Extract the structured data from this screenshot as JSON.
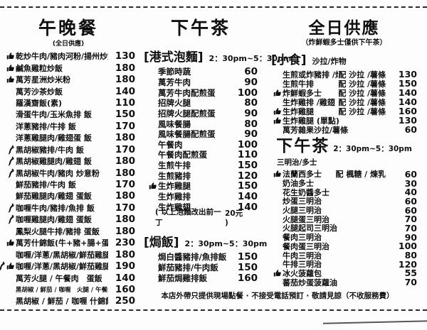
{
  "lunch_dinner": {
    "title": "午晚餐",
    "subtitle": "(全日供應)",
    "items": [
      {
        "icons": [
          "thumbs-up"
        ],
        "name": "乾炒牛肉/豬肉河粉/揚州炒飯",
        "price": "130"
      },
      {
        "icons": [
          "thumbs-up"
        ],
        "name": "鹹魚雞粒炒飯",
        "price": "180"
      },
      {
        "icons": [
          "thumbs-up"
        ],
        "name": "萬芳星洲炒米粉",
        "price": "180"
      },
      {
        "name": "萬芳沙茶炒飯",
        "price": "140"
      },
      {
        "name": "羅漢齋飯(素)",
        "price": "110"
      },
      {
        "name": "滑蛋牛肉/玉米魚排 飯",
        "price": "150"
      },
      {
        "name": "洋蔥豬排/牛排 飯",
        "price": "170"
      },
      {
        "name": "洋蔥雞腿肉/雞翅蛋 飯",
        "price": "180"
      },
      {
        "icons": [
          "chili"
        ],
        "name": "黑胡椒豬排/牛肉 飯",
        "price": "170"
      },
      {
        "icons": [
          "chili"
        ],
        "name": "黑胡椒雞腿肉/雞翅 飯",
        "price": "180"
      },
      {
        "icons": [
          "chili"
        ],
        "name": "黑胡椒牛肉/豬肉 炒意粉",
        "price": "180"
      },
      {
        "name": "鮮茄豬排/牛肉 飯",
        "price": "170"
      },
      {
        "name": "鮮茄雞腿肉/雞翅 蛋飯",
        "price": "180"
      },
      {
        "icons": [
          "chili"
        ],
        "name": "咖喱牛肉/豬排/魚排 飯",
        "price": "170"
      },
      {
        "icons": [
          "chili"
        ],
        "name": "咖喱雞腿肉/雞翅 蛋飯",
        "price": "180"
      },
      {
        "name": "鳳梨火腿牛排/豬排 蛋飯",
        "price": "180"
      },
      {
        "icons": [
          "thumbs-up"
        ],
        "name": "萬芳什錦飯(牛+豬+腸+蛋)",
        "price": "230"
      },
      {
        "name": "咖喱/洋蔥/黑胡椒/鮮茄雞腿 飯",
        "price": "180"
      },
      {
        "icons": [
          "chili",
          "thumbs-up"
        ],
        "name": "咖喱/洋蔥/黑胡椒/鮮茄雞腿 蛋飯",
        "price": "190"
      },
      {
        "name": "萬芳火腿 / 午餐肉　蛋飯",
        "price": "140"
      },
      {
        "name": "黑胡椒 / 鮮茄 / 咖喱　火腿 / 午餐肉　蛋飯",
        "price": "160",
        "small": true
      },
      {
        "name": "黑胡椒 / 鮮茄 / 咖喱 什錦飯",
        "price": "250"
      }
    ]
  },
  "afternoon_tea": {
    "title": "下午茶",
    "noodles": {
      "label": "[港式泡麵]",
      "time": "2：30pm~5：30pm",
      "items": [
        {
          "name": "季節時蔬",
          "price": "60"
        },
        {
          "name": "萬芳牛肉",
          "price": "90"
        },
        {
          "name": "萬芳牛肉配煎蛋",
          "price": "100"
        },
        {
          "name": "招牌火腿",
          "price": "80"
        },
        {
          "name": "招牌火腿配煎蛋",
          "price": "90"
        },
        {
          "name": "風味餐腸",
          "price": "80"
        },
        {
          "name": "風味餐腸配煎蛋",
          "price": "90"
        },
        {
          "name": "午餐肉",
          "price": "100"
        },
        {
          "name": "午餐肉配煎蛋",
          "price": "110"
        },
        {
          "name": "生煎牛排",
          "price": "150"
        },
        {
          "name": "生煎豬排",
          "price": "120"
        },
        {
          "icons": [
            "thumbs-up"
          ],
          "name": "生炸雞腿",
          "price": "150"
        },
        {
          "name": "生炸雞排",
          "price": "140"
        },
        {
          "name": "生炸雞翅",
          "price": "140"
        }
      ],
      "note": "( 以上泡麵改出前一丁",
      "note_price": "20元 )"
    },
    "baked_rice": {
      "label": "[焗飯]",
      "time": "2：30pm~5：30pm",
      "items": [
        {
          "name": "焗白醬豬排/魚排飯",
          "price": "150"
        },
        {
          "name": "鮮茄豬排/牛肉飯",
          "price": "150"
        },
        {
          "name": "鮮茄焗雞排飯",
          "price": "160"
        }
      ]
    }
  },
  "all_day": {
    "title": "全日供應",
    "subtitle": "（炸鮮蝦多士僅供下午茶）",
    "snacks": {
      "label": "[小食]",
      "sublabel": "沙拉/炸物",
      "items": [
        {
          "name": "生煎或炸豬排 /炸魚排",
          "side": "配 沙拉 /薯條",
          "price": "130"
        },
        {
          "name": "生煎牛排",
          "side": "配 沙拉 /薯條",
          "price": "150"
        },
        {
          "icons": [
            "thumbs-up"
          ],
          "name": "炸鮮蝦多士",
          "side": "配 沙拉 /薯條",
          "price": "140"
        },
        {
          "name": "生炸雞排 /雞翅",
          "side": "配 沙拉 /薯條",
          "price": "140"
        },
        {
          "icons": [
            "thumbs-up"
          ],
          "name": "生炸雞腿",
          "side": "配 沙拉 /薯條",
          "price": "160"
        },
        {
          "icons": [
            "thumbs-up"
          ],
          "name": "生炸雞腿 (單點)",
          "price": "130"
        },
        {
          "name": "萬芳雜果沙拉/薯條",
          "price": "60"
        }
      ]
    },
    "tea": {
      "title": "下午茶",
      "time": "2：30pm~5：30pm",
      "sublabel": "三明治/多士",
      "items": [
        {
          "icons": [
            "thumbs-up"
          ],
          "name": "法蘭西多士",
          "side": "配 楓糖 / 煉乳",
          "price": "60"
        },
        {
          "name": "奶油多士",
          "price": "30"
        },
        {
          "name": "花生奶醬多士",
          "price": "40"
        },
        {
          "name": "炒蛋三明治",
          "price": "60"
        },
        {
          "name": "火腿三明治",
          "price": "60"
        },
        {
          "name": "火腿蛋三明治",
          "price": "70"
        },
        {
          "name": "火腿起司三明治",
          "price": "70"
        },
        {
          "name": "餐肉三明治",
          "price": "90"
        },
        {
          "name": "餐肉蛋三明治",
          "price": "100"
        },
        {
          "name": "牛肉三明治",
          "price": "80"
        },
        {
          "name": "牛排三明治",
          "price": "120"
        },
        {
          "icons": [
            "thumbs-up"
          ],
          "name": "冰火菠蘿包",
          "price": "55"
        },
        {
          "name": "蕃茄炒蛋菠蘿油",
          "price": "70"
        }
      ]
    }
  },
  "footer": {
    "note": "本店外帶只提供現場點餐 · 不接受電話預訂 · 敬請見諒（不收服務費）"
  },
  "colors": {
    "ink": "#101010",
    "paper": "#fdfdfd"
  }
}
